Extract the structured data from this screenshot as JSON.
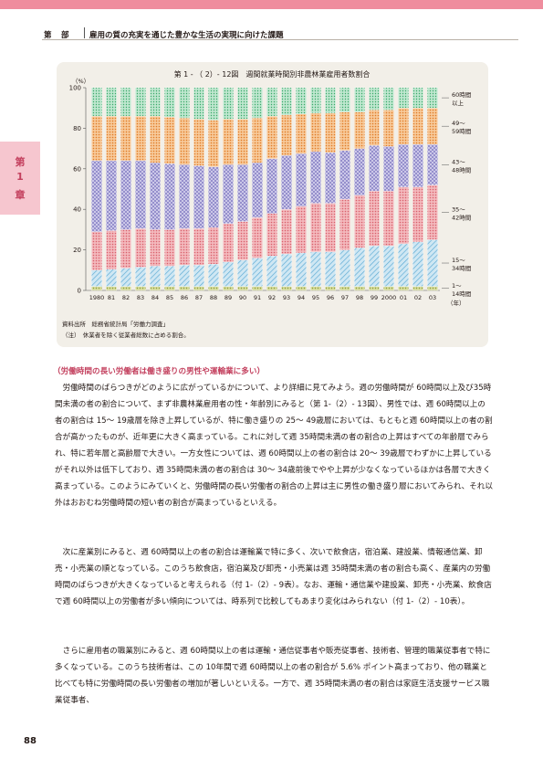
{
  "header": {
    "part": "第　部",
    "title": "雇用の質の充実を通じた豊かな生活の実現に向けた課題"
  },
  "chapter_tab": [
    "第",
    "1",
    "章"
  ],
  "figure": {
    "title": "第 1 - （ 2）- 12図　週間就業時間別非農林業雇用者数割合",
    "y_unit": "（%）",
    "x_unit": "（年）",
    "source": "資料出所　総務省統計局「労働力調査」",
    "note": "（注）　休業者を除く従業者総数に占める割合。"
  },
  "chart_data": {
    "type": "bar",
    "stacked": true,
    "categories": [
      "1980",
      "81",
      "82",
      "83",
      "84",
      "85",
      "86",
      "87",
      "88",
      "89",
      "90",
      "91",
      "92",
      "93",
      "94",
      "95",
      "96",
      "97",
      "98",
      "99",
      "2000",
      "01",
      "02",
      "03"
    ],
    "ylim": [
      0,
      100
    ],
    "yticks": [
      0,
      20,
      40,
      60,
      80,
      100
    ],
    "series": [
      {
        "name": "1～14時間",
        "color": "#b9c46a",
        "values": [
          2,
          2,
          2,
          2,
          2,
          2,
          2,
          2,
          2,
          2,
          2,
          2,
          2,
          2,
          2,
          2,
          2,
          2,
          2,
          2,
          2,
          2,
          2,
          2
        ]
      },
      {
        "name": "15～34時間",
        "color": "#8fc8e3",
        "values": [
          8,
          8.5,
          9,
          9.5,
          10,
          10,
          10.5,
          10.5,
          11,
          12,
          13,
          14,
          15,
          16,
          16.5,
          17,
          17,
          18,
          19,
          20,
          20,
          21,
          22,
          23
        ]
      },
      {
        "name": "35～42時間",
        "color": "#ec8c94",
        "values": [
          19,
          19,
          19,
          19,
          18,
          18,
          18,
          18,
          18,
          19,
          19,
          20,
          21,
          22,
          23,
          24,
          24,
          25,
          26,
          27,
          27,
          28,
          27,
          27
        ]
      },
      {
        "name": "43～48時間",
        "color": "#b7b2da",
        "values": [
          35,
          34.5,
          34,
          33.5,
          33,
          32.5,
          31.5,
          31,
          30,
          29,
          28,
          27,
          27,
          26.5,
          26,
          25.5,
          25,
          24,
          23,
          22.5,
          22,
          21,
          21,
          20
        ]
      },
      {
        "name": "49～59時間",
        "color": "#f0a862",
        "values": [
          22,
          22,
          22,
          22,
          23,
          23,
          23,
          23,
          23,
          22.5,
          22.5,
          22,
          21,
          20,
          19.5,
          19,
          19.5,
          19,
          18,
          17.5,
          18,
          18,
          18,
          18
        ]
      },
      {
        "name": "60時間以上",
        "color": "#7fcfa2",
        "values": [
          14,
          14,
          14,
          14,
          14,
          14.5,
          15,
          15.5,
          16,
          15.5,
          15.5,
          15,
          14,
          13.5,
          13,
          12.5,
          12.5,
          12,
          12,
          11,
          11,
          10,
          10,
          10
        ]
      }
    ],
    "legend_labels": [
      [
        "60時間",
        "以上"
      ],
      [
        "49～",
        "59時間"
      ],
      [
        "43～",
        "48時間"
      ],
      [
        "35～",
        "42時間"
      ],
      [
        "15～",
        "34時間"
      ],
      [
        "1～",
        "14時間"
      ]
    ]
  },
  "section": {
    "heading": "（労働時間の長い労働者は働き盛りの男性や運輸業に多い）",
    "paragraphs": [
      "労働時間のばらつきがどのように広がっているかについて、より詳細に見てみよう。週の労働時間が 60時間以上及び35時間未満の者の割合について、まず非農林業雇用者の性・年齢別にみると（第 1-（2）- 13図）、男性では、週 60時間以上の者の割合は 15～ 19歳層を除き上昇しているが、特に働き盛りの 25～ 49歳層においては、もともと週 60時間以上の者の割合が高かったものが、近年更に大きく高まっている。これに対して週 35時間未満の者の割合の上昇はすべての年齢層でみられ、特に若年層と高齢層で大きい。一方女性については、週 60時間以上の者の割合は 20～ 39歳層でわずかに上昇しているがそれ以外は低下しており、週 35時間未満の者の割合は 30～ 34歳前後でやや上昇が少なくなっているほかは各層で大きく高まっている。このようにみていくと、労働時間の長い労働者の割合の上昇は主に男性の働き盛り層においてみられ、それ以外はおおむね労働時間の短い者の割合が高まっているといえる。",
      "次に産業別にみると、週 60時間以上の者の割合は運輸業で特に多く、次いで飲食店，宿泊業、建設業、情報通信業、卸売・小売業の順となっている。このうち飲食店，宿泊業及び卸売・小売業は週 35時間未満の者の割合も高く、産業内の労働時間のばらつきが大きくなっていると考えられる（付 1-（2）- 9表）。なお、運輸・通信業や建設業、卸売・小売業、飲食店で週 60時間以上の労働者が多い傾向については、時系列で比較してもあまり変化はみられない（付 1-（2）- 10表）。",
      "さらに雇用者の職業別にみると、週 60時間以上の者は運輸・通信従事者や販売従事者、技術者、管理的職業従事者で特に多くなっている。このうち技術者は、この 10年間で週 60時間以上の者の割合が 5.6% ポイント高まっており、他の職業と比べても特に労働時間の長い労働者の増加が著しいといえる。一方で、週 35時間未満の者の割合は家庭生活支援サービス職業従事者、"
    ]
  },
  "page_number": "88"
}
